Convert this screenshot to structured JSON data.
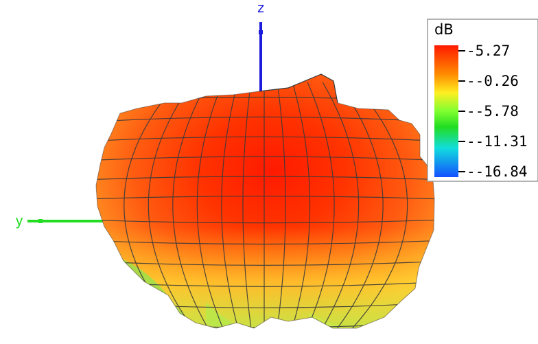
{
  "chart_data": {
    "type": "3d-radiation-pattern",
    "axes": [
      {
        "name": "z",
        "color": "#1c1cdc"
      },
      {
        "name": "y",
        "color": "#22dd22"
      }
    ],
    "legend": {
      "title": "dB",
      "ticks": [
        "5.27",
        "-0.26",
        "-5.78",
        "-11.31",
        "-16.84"
      ],
      "values": [
        5.27,
        -0.26,
        -5.78,
        -11.31,
        -16.84
      ],
      "colormap": [
        "#ff1a00",
        "#ff7a00",
        "#ffd400",
        "#ccff33",
        "#22dd22",
        "#11dddd",
        "#1555ff"
      ]
    },
    "max_gain_db": 5.27,
    "min_gain_db": -16.84
  }
}
